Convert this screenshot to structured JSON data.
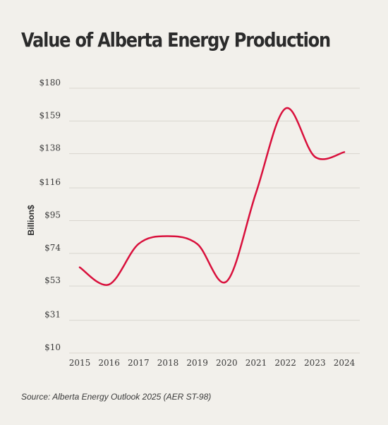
{
  "title": "Value of Alberta Energy Production",
  "source": "Source: Alberta Energy Outlook 2025 (AER ST-98)",
  "chart_data": {
    "type": "line",
    "title": "Value of Alberta Energy Production",
    "xlabel": "",
    "ylabel": "Billion$",
    "categories": [
      "2015",
      "2016",
      "2017",
      "2018",
      "2019",
      "2020",
      "2021",
      "2022",
      "2023",
      "2024"
    ],
    "series": [
      {
        "values": [
          65,
          54,
          80,
          85,
          80,
          56,
          113,
          167,
          136,
          139
        ]
      }
    ],
    "yticks": [
      10,
      31,
      53,
      74,
      95,
      116,
      138,
      159,
      180
    ],
    "ytick_labels": [
      "$10",
      "$31",
      "$53",
      "$74",
      "$95",
      "$116",
      "$138",
      "$159",
      "$180"
    ],
    "ylim": [
      10,
      180
    ],
    "grid": true,
    "line_color": "#d9103c",
    "grid_color": "#d9d6cf"
  }
}
